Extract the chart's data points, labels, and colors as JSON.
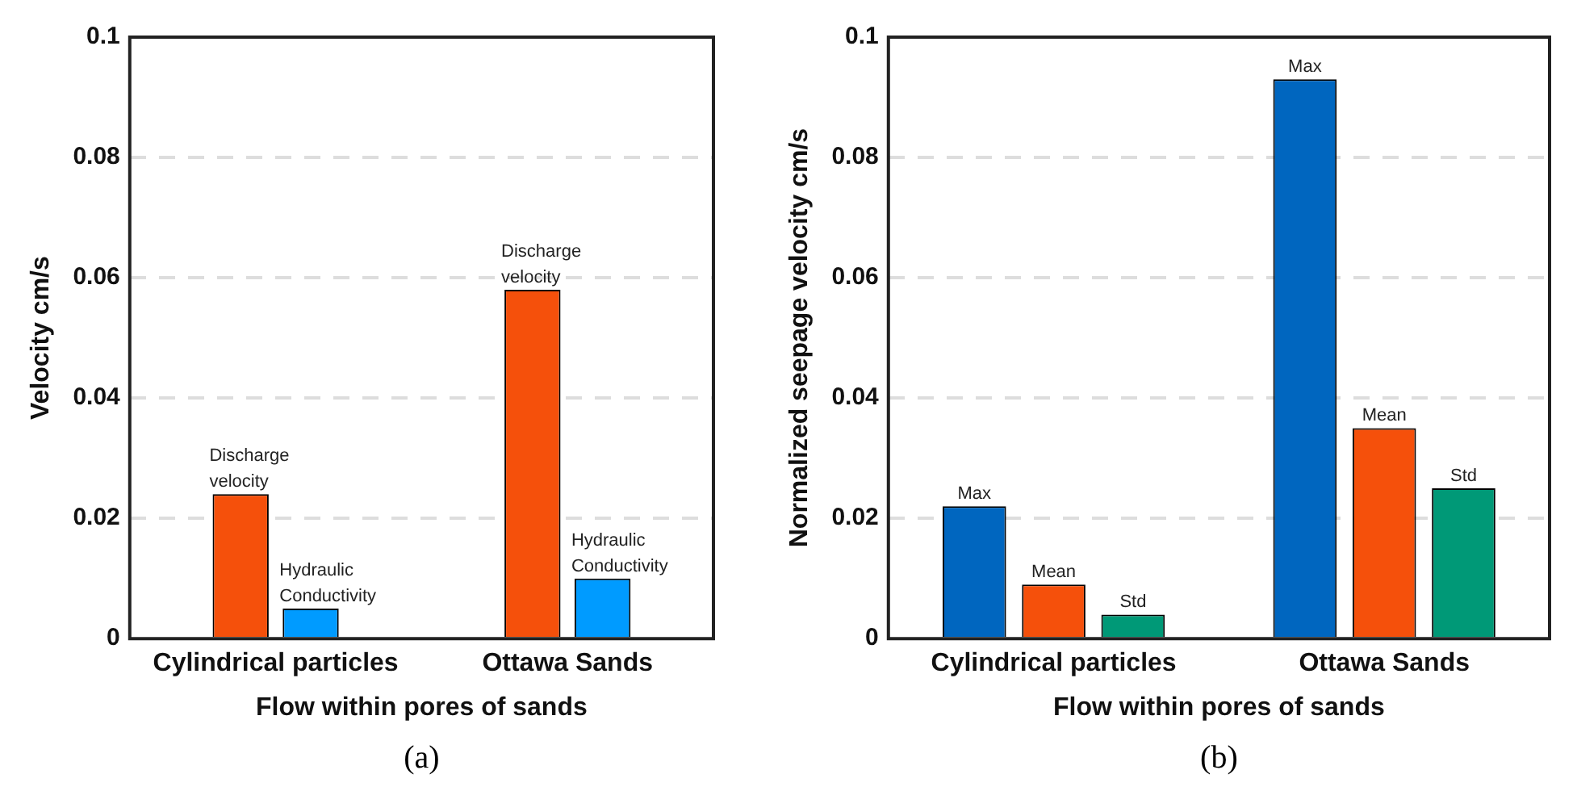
{
  "chart_data": [
    {
      "type": "bar",
      "xlabel": "Flow within pores of sands",
      "ylabel": "Velocity cm/s",
      "categories": [
        "Cylindrical particles",
        "Ottawa Sands"
      ],
      "series": [
        {
          "name": "Discharge velocity",
          "color": "#f5500b",
          "values": [
            0.024,
            0.058
          ]
        },
        {
          "name": "Hydraulic Conductivity",
          "color": "#009bff",
          "values": [
            0.005,
            0.01
          ]
        }
      ],
      "ylim": [
        0,
        0.1
      ],
      "yticks": [
        0,
        0.02,
        0.04,
        0.06,
        0.08,
        0.1
      ],
      "grid": "y",
      "annotations": [
        "(a)"
      ]
    },
    {
      "type": "bar",
      "xlabel": "Flow within pores of sands",
      "ylabel": "Normalized seepage velocity cm/s",
      "categories": [
        "Cylindrical particles",
        "Ottawa Sands"
      ],
      "series": [
        {
          "name": "Max",
          "color": "#0066bf",
          "values": [
            0.022,
            0.093
          ]
        },
        {
          "name": "Mean",
          "color": "#f5500b",
          "values": [
            0.009,
            0.035
          ]
        },
        {
          "name": "Std",
          "color": "#009977",
          "values": [
            0.004,
            0.025
          ]
        }
      ],
      "ylim": [
        0,
        0.1
      ],
      "yticks": [
        0,
        0.02,
        0.04,
        0.06,
        0.08,
        0.1
      ],
      "grid": "y",
      "annotations": [
        "(b)"
      ]
    }
  ]
}
